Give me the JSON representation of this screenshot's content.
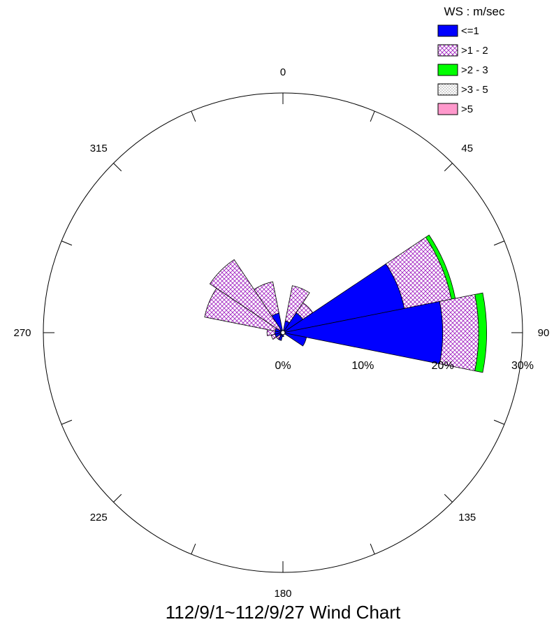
{
  "chart_data": {
    "type": "wind-rose",
    "title": "112/9/1~112/9/27 Wind Chart",
    "direction_labels": [
      "0",
      "45",
      "90",
      "135",
      "180",
      "225",
      "270",
      "315"
    ],
    "radial_labels": [
      "0%",
      "10%",
      "20%",
      "30%"
    ],
    "radial_max": 30,
    "legend_title": "WS : m/sec",
    "bins": [
      {
        "label": "<=1",
        "color": "#0000ff",
        "pattern": "solid"
      },
      {
        "label": ">1 - 2",
        "color": "#ff80ff",
        "pattern": "crosshatch"
      },
      {
        "label": ">2 - 3",
        "color": "#00ff00",
        "pattern": "solid"
      },
      {
        "label": ">3 - 5",
        "color": "#c0c0c0",
        "pattern": "dots"
      },
      {
        "label": ">5",
        "color": "#ff99cc",
        "pattern": "solid"
      }
    ],
    "sectors": [
      {
        "direction": 0,
        "values": [
          0,
          0,
          0,
          0,
          0
        ]
      },
      {
        "direction": 22.5,
        "values": [
          1.5,
          4.5,
          0,
          0,
          0
        ]
      },
      {
        "direction": 45,
        "values": [
          3.0,
          1.5,
          0,
          0,
          0
        ]
      },
      {
        "direction": 67.5,
        "values": [
          15.5,
          6.0,
          0.5,
          0,
          0
        ]
      },
      {
        "direction": 90,
        "values": [
          20.0,
          4.5,
          1.0,
          0,
          0
        ]
      },
      {
        "direction": 112.5,
        "values": [
          3.0,
          0,
          0,
          0,
          0
        ]
      },
      {
        "direction": 135,
        "values": [
          0,
          0,
          0,
          0,
          0
        ]
      },
      {
        "direction": 157.5,
        "values": [
          0,
          0,
          0,
          0,
          0
        ]
      },
      {
        "direction": 180,
        "values": [
          0.5,
          0,
          0,
          0,
          0
        ]
      },
      {
        "direction": 202.5,
        "values": [
          1.0,
          0,
          0,
          0,
          0
        ]
      },
      {
        "direction": 225,
        "values": [
          0.5,
          0.5,
          0,
          0,
          0
        ]
      },
      {
        "direction": 247.5,
        "values": [
          1.0,
          0.5,
          0,
          0,
          0
        ]
      },
      {
        "direction": 270,
        "values": [
          1.0,
          1.0,
          0,
          0,
          0
        ]
      },
      {
        "direction": 292.5,
        "values": [
          1.0,
          9.0,
          0,
          0,
          0
        ]
      },
      {
        "direction": 315,
        "values": [
          0.5,
          10.5,
          0,
          0,
          0
        ]
      },
      {
        "direction": 337.5,
        "values": [
          2.5,
          4.0,
          0,
          0,
          0
        ]
      }
    ]
  }
}
